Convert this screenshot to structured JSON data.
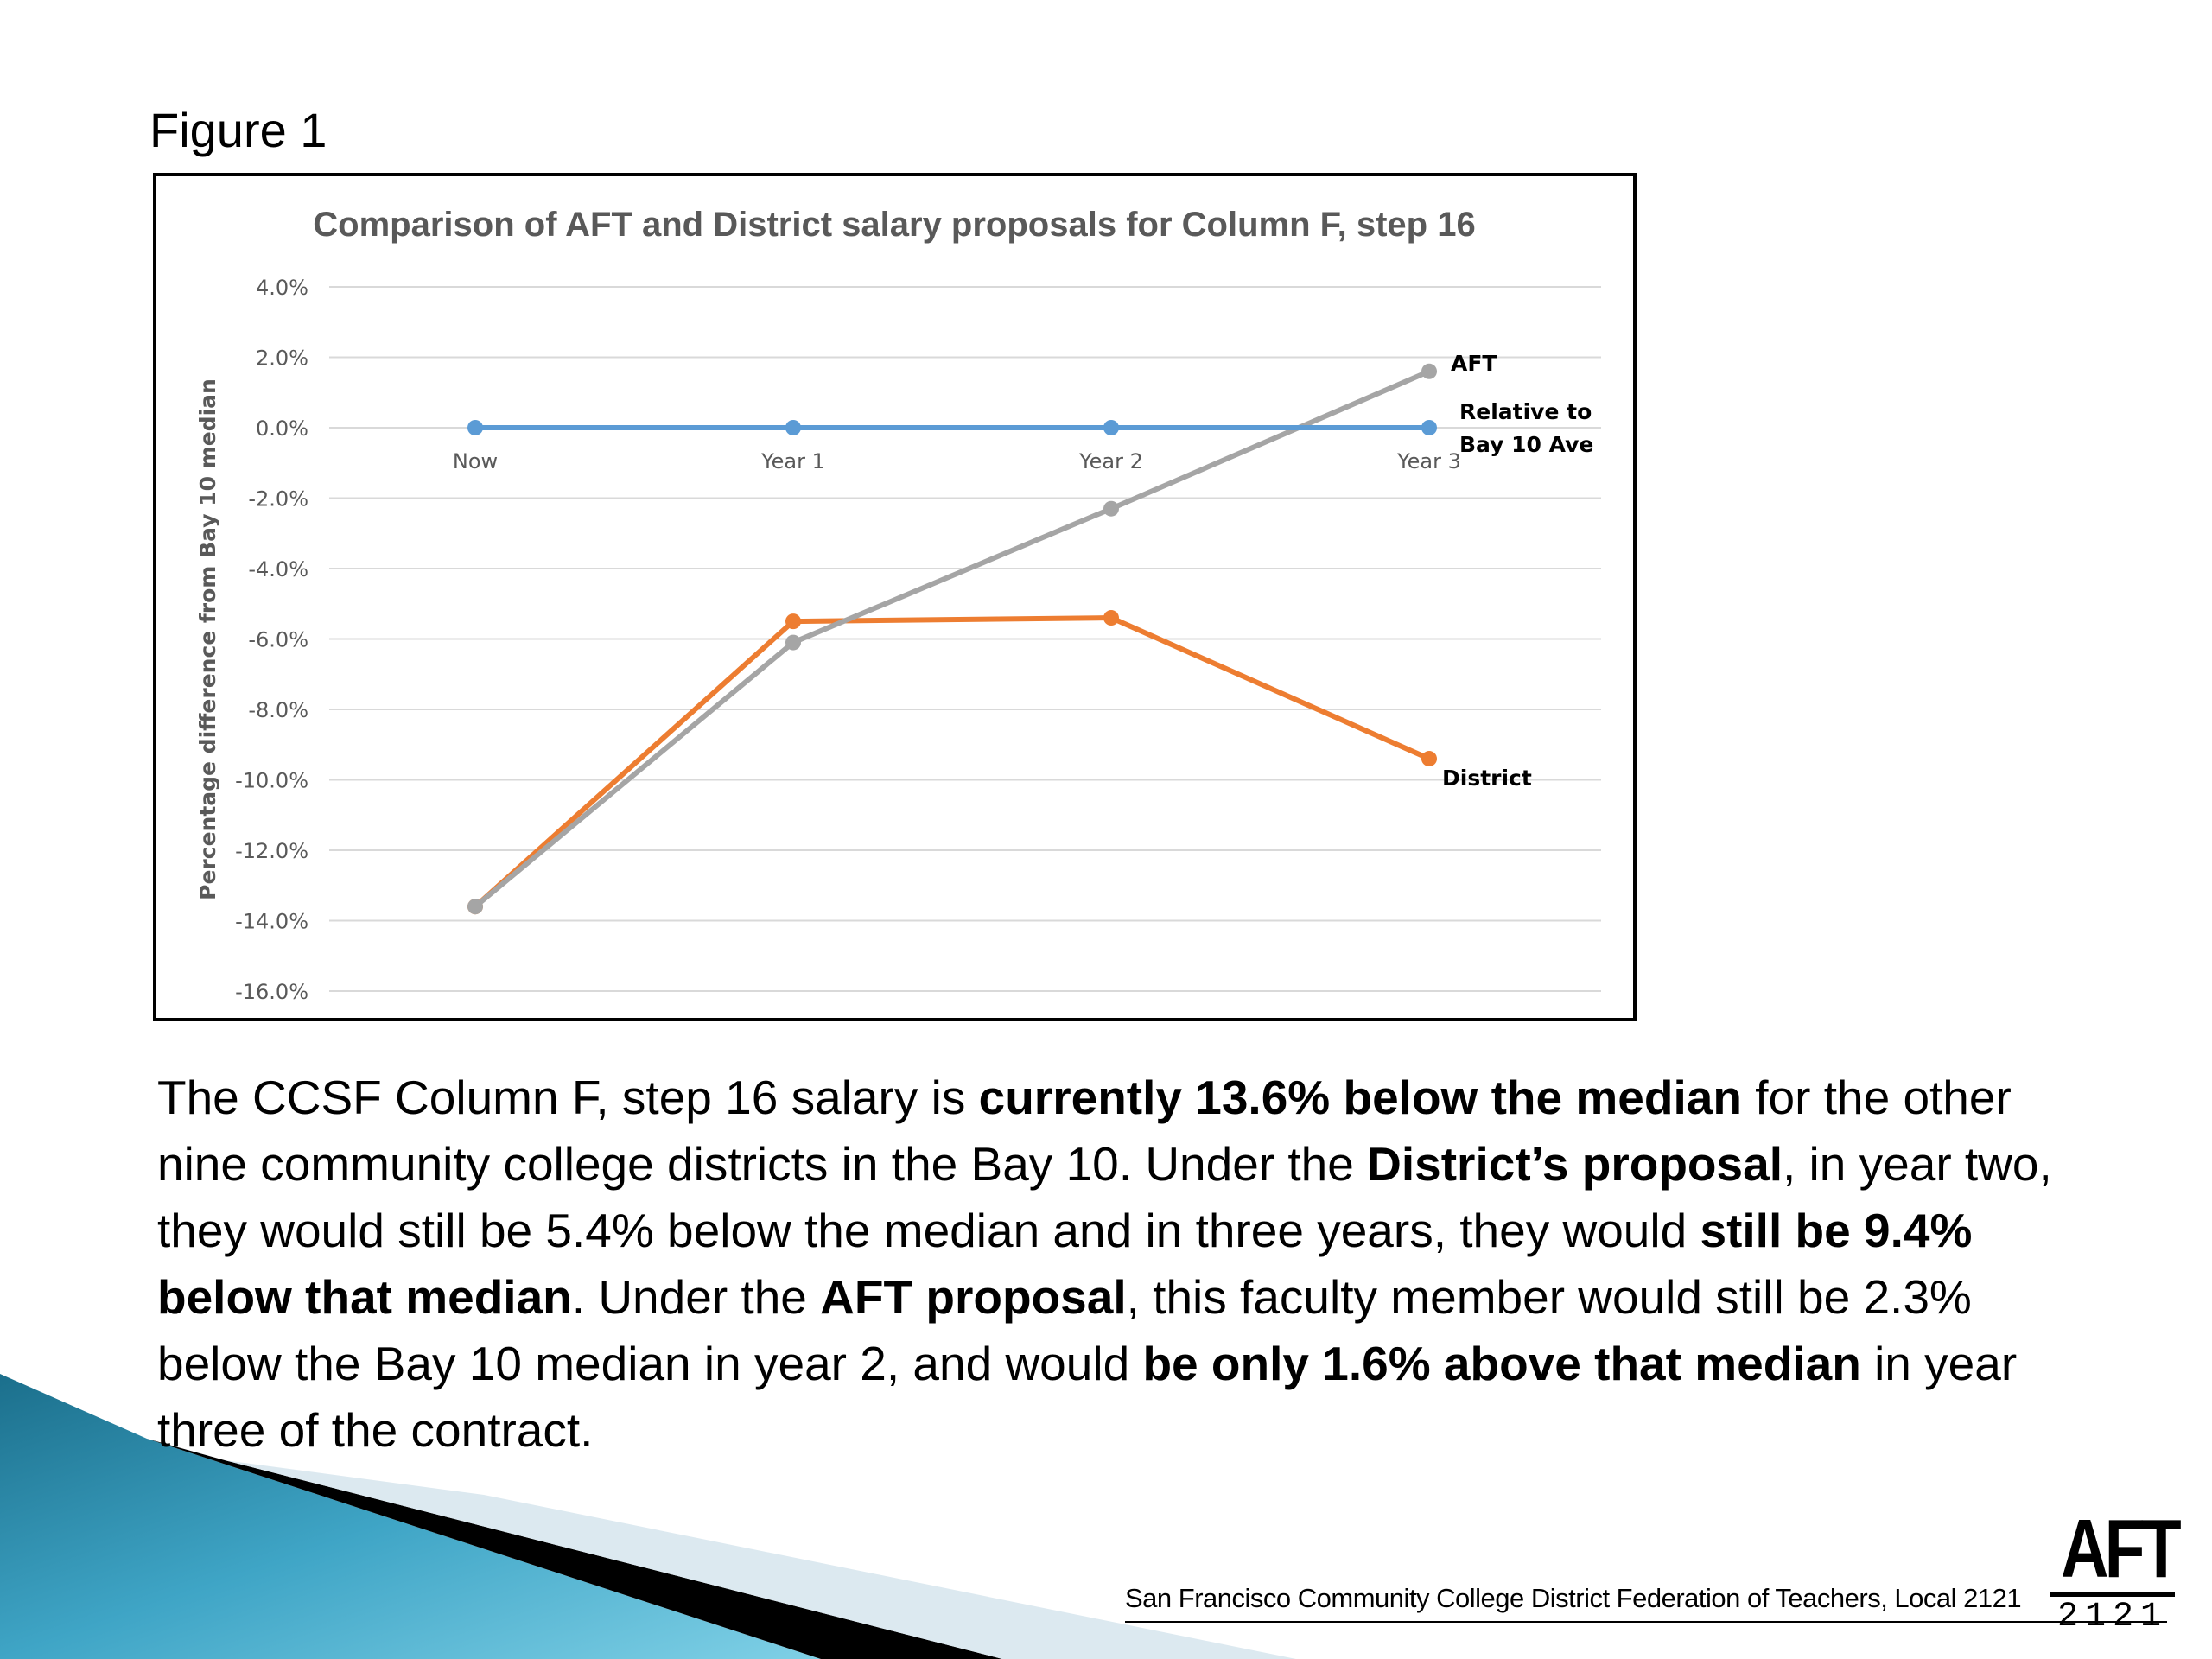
{
  "figure_label": "Figure 1",
  "chart_data": {
    "type": "line",
    "title": "Comparison of AFT and District salary proposals for Column F, step 16",
    "xlabel": "",
    "ylabel": "Percentage difference from Bay 10 median",
    "categories": [
      "Now",
      "Year 1",
      "Year 2",
      "Year 3"
    ],
    "ylim": [
      -16.0,
      4.0
    ],
    "yticks": [
      "4.0%",
      "2.0%",
      "0.0%",
      "-2.0%",
      "-4.0%",
      "-6.0%",
      "-8.0%",
      "-10.0%",
      "-12.0%",
      "-14.0%",
      "-16.0%"
    ],
    "grid": true,
    "series": [
      {
        "name": "Relative to Bay 10 Ave",
        "label_lines": [
          "Relative to",
          "Bay 10 Ave"
        ],
        "color": "#5B9BD5",
        "values": [
          0.0,
          0.0,
          0.0,
          0.0
        ]
      },
      {
        "name": "AFT",
        "label_lines": [
          "AFT"
        ],
        "color": "#A5A5A5",
        "values": [
          -13.6,
          -6.1,
          -2.3,
          1.6
        ]
      },
      {
        "name": "District",
        "label_lines": [
          "District"
        ],
        "color": "#ED7D31",
        "values": [
          -13.6,
          -5.5,
          -5.4,
          -9.4
        ]
      }
    ]
  },
  "body": {
    "p1": "The CCSF Column F, step 16 salary is ",
    "b1": "currently 13.6% below the median",
    "p2": " for the other nine community college districts in the Bay 10. Under the ",
    "b2": "District’s proposal",
    "p3": ", in year two, they would still be 5.4% below the median and in three years, they would ",
    "b3": "still be 9.4% below that median",
    "p4": ". Under the ",
    "b4": "AFT proposal",
    "p5": ", this faculty member would still be 2.3% below the Bay 10 median in year 2, and would ",
    "b5": "be only 1.6% above that median",
    "p6": " in year three of the contract."
  },
  "footer": {
    "org": "San Francisco Community College District Federation of Teachers, Local 2121",
    "logo_top": "AFT",
    "logo_bottom": "2121"
  }
}
